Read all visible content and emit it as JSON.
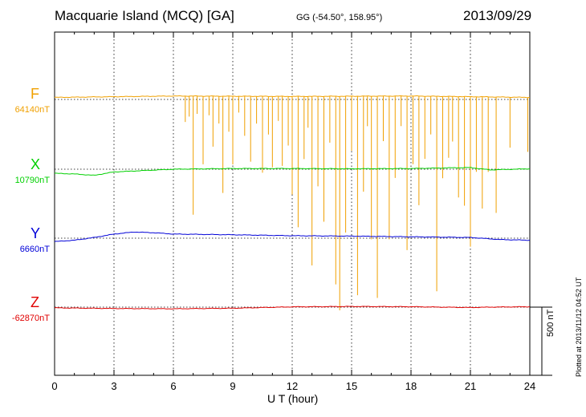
{
  "header": {
    "title": "Macquarie Island (MCQ)  [GA]",
    "coords": "GG (-54.50°, 158.95°)",
    "date": "2013/09/29"
  },
  "footer": {
    "xlabel": "U T (hour)",
    "plotted": "Plotted at 2013/11/12 04:52 UT"
  },
  "scale_bar": {
    "label": "500 nT",
    "value_nT": 500
  },
  "components": [
    {
      "name": "F",
      "baseline": "64140nT",
      "color": "#f0a000"
    },
    {
      "name": "X",
      "baseline": "10790nT",
      "color": "#00d000"
    },
    {
      "name": "Y",
      "baseline": "6660nT",
      "color": "#0000d8"
    },
    {
      "name": "Z",
      "baseline": "-62870nT",
      "color": "#e00000"
    }
  ],
  "chart_data": {
    "type": "line",
    "title": "Macquarie Island (MCQ)  [GA]",
    "xlabel": "U T (hour)",
    "x_ticks": [
      "0",
      "3",
      "6",
      "9",
      "12",
      "15",
      "18",
      "21",
      "24"
    ],
    "xlim": [
      0,
      24
    ],
    "grid": "vertical dotted at every 3 hours",
    "units": "nT",
    "series": [
      {
        "name": "F",
        "baseline": "64140nT",
        "trace_nT": [
          [
            0,
            15
          ],
          [
            6,
            25
          ],
          [
            12,
            22
          ],
          [
            18,
            25
          ],
          [
            24,
            15
          ]
        ],
        "spikes_nT": [
          [
            6.6,
            -190
          ],
          [
            6.8,
            -150
          ],
          [
            7.0,
            -870
          ],
          [
            7.2,
            -130
          ],
          [
            7.5,
            -500
          ],
          [
            7.8,
            -140
          ],
          [
            8.0,
            -370
          ],
          [
            8.3,
            -200
          ],
          [
            8.5,
            -710
          ],
          [
            8.8,
            -260
          ],
          [
            9.0,
            -500
          ],
          [
            9.3,
            -120
          ],
          [
            9.6,
            -290
          ],
          [
            9.9,
            -480
          ],
          [
            10.2,
            -200
          ],
          [
            10.5,
            -560
          ],
          [
            10.8,
            -280
          ],
          [
            11.0,
            -520
          ],
          [
            11.3,
            -180
          ],
          [
            11.5,
            -510
          ],
          [
            11.8,
            -360
          ],
          [
            12.0,
            -720
          ],
          [
            12.3,
            -960
          ],
          [
            12.6,
            -460
          ],
          [
            12.8,
            -230
          ],
          [
            13.0,
            -1240
          ],
          [
            13.3,
            -660
          ],
          [
            13.6,
            -920
          ],
          [
            13.9,
            -340
          ],
          [
            14.2,
            -1380
          ],
          [
            14.4,
            -1570
          ],
          [
            14.7,
            -1000
          ],
          [
            15.0,
            -400
          ],
          [
            15.3,
            -1460
          ],
          [
            15.6,
            -700
          ],
          [
            15.8,
            -220
          ],
          [
            16.0,
            -1050
          ],
          [
            16.3,
            -1480
          ],
          [
            16.6,
            -330
          ],
          [
            16.9,
            -1050
          ],
          [
            17.2,
            -600
          ],
          [
            17.5,
            -220
          ],
          [
            17.8,
            -1130
          ],
          [
            18.1,
            -500
          ],
          [
            18.4,
            -800
          ],
          [
            18.7,
            -460
          ],
          [
            19.0,
            -280
          ],
          [
            19.3,
            -1430
          ],
          [
            19.6,
            -600
          ],
          [
            19.9,
            -450
          ],
          [
            20.1,
            -330
          ],
          [
            20.4,
            -740
          ],
          [
            20.7,
            -800
          ],
          [
            21.0,
            -1100
          ],
          [
            21.3,
            -550
          ],
          [
            21.6,
            -820
          ],
          [
            21.9,
            -550
          ],
          [
            22.3,
            -850
          ],
          [
            23.0,
            -370
          ],
          [
            23.9,
            -400
          ]
        ]
      },
      {
        "name": "X",
        "baseline": "10790nT",
        "trace_nT": [
          [
            0,
            -30
          ],
          [
            1,
            -35
          ],
          [
            2,
            -45
          ],
          [
            3,
            -20
          ],
          [
            6,
            0
          ],
          [
            9,
            5
          ],
          [
            12,
            5
          ],
          [
            15,
            3
          ],
          [
            18,
            5
          ],
          [
            20,
            10
          ],
          [
            21,
            12
          ],
          [
            22,
            -5
          ],
          [
            24,
            3
          ]
        ]
      },
      {
        "name": "Y",
        "baseline": "6660nT",
        "trace_nT": [
          [
            0,
            -25
          ],
          [
            1,
            -15
          ],
          [
            2,
            5
          ],
          [
            3,
            30
          ],
          [
            4,
            45
          ],
          [
            5,
            40
          ],
          [
            6,
            30
          ],
          [
            9,
            25
          ],
          [
            12,
            18
          ],
          [
            15,
            15
          ],
          [
            18,
            10
          ],
          [
            21,
            5
          ],
          [
            22.5,
            -10
          ],
          [
            24,
            -15
          ]
        ]
      },
      {
        "name": "Z",
        "baseline": "-62870nT",
        "trace_nT": [
          [
            0,
            -5
          ],
          [
            3,
            -10
          ],
          [
            6,
            -12
          ],
          [
            9,
            -8
          ],
          [
            12,
            2
          ],
          [
            15,
            5
          ],
          [
            18,
            3
          ],
          [
            21,
            -3
          ],
          [
            22,
            0
          ],
          [
            24,
            3
          ]
        ]
      }
    ]
  }
}
